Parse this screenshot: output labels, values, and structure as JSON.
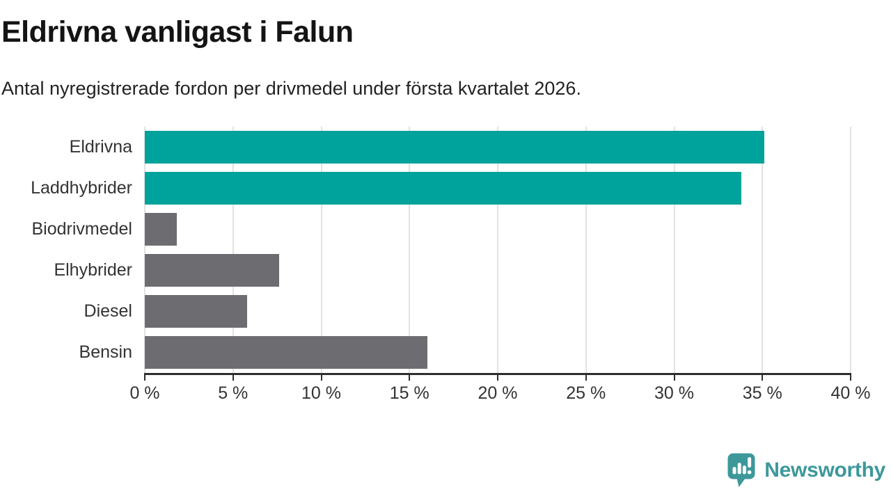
{
  "header": {
    "title": "Eldrivna vanligast i Falun",
    "subtitle": "Antal nyregistrerade fordon per drivmedel under första kvartalet 2026."
  },
  "colors": {
    "highlight_bar": "#00a39b",
    "default_bar": "#6d6d71",
    "gridline": "#e2e2e2",
    "axis": "#2e2e2e",
    "text": "#333333",
    "brand": "#3d989a"
  },
  "chart_data": {
    "type": "bar",
    "orientation": "horizontal",
    "title": "Eldrivna vanligast i Falun",
    "subtitle": "Antal nyregistrerade fordon per drivmedel under första kvartalet 2026.",
    "categories": [
      "Eldrivna",
      "Laddhybrider",
      "Biodrivmedel",
      "Elhybrider",
      "Diesel",
      "Bensin"
    ],
    "values": [
      35.1,
      33.8,
      1.8,
      7.6,
      5.8,
      16.0
    ],
    "unit": "%",
    "highlighted": [
      true,
      true,
      false,
      false,
      false,
      false
    ],
    "xlim": [
      0,
      40
    ],
    "x_tick_values": [
      0,
      5,
      10,
      15,
      20,
      25,
      30,
      35,
      40
    ],
    "x_tick_labels": [
      "0 %",
      "5 %",
      "10 %",
      "15 %",
      "20 %",
      "25 %",
      "30 %",
      "35 %",
      "40 %"
    ],
    "grid": true,
    "legend": false
  },
  "branding": {
    "logo_text": "Newsworthy",
    "logo_icon": "newsworthy-speech-bubble-chart-icon"
  }
}
